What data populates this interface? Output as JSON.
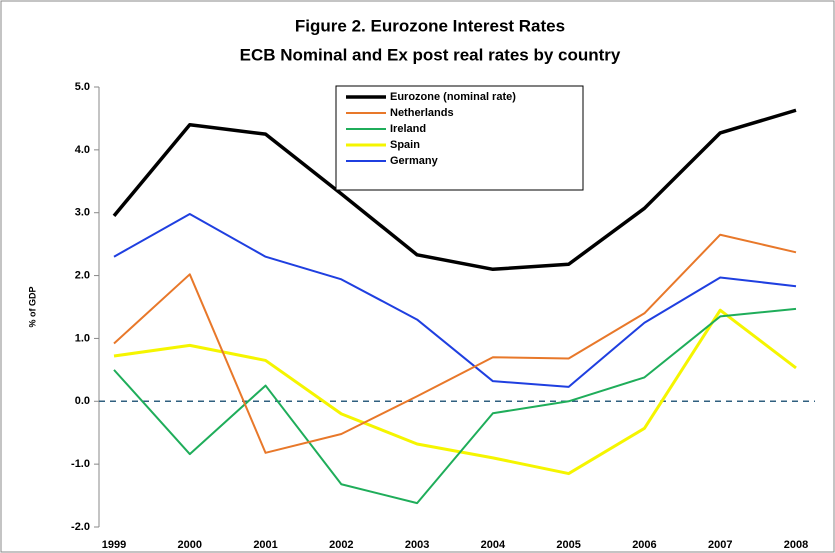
{
  "chart_data": {
    "type": "line",
    "title": "Figure 2. Eurozone Interest Rates",
    "subtitle": "ECB Nominal and Ex post real rates by country",
    "y_label": "% of GDP",
    "categories": [
      "1999",
      "2000",
      "2001",
      "2002",
      "2003",
      "2004",
      "2005",
      "2006",
      "2007",
      "2008"
    ],
    "series": [
      {
        "name": "Eurozone (nominal rate)",
        "color": "#000000",
        "width": 3.5,
        "values": [
          2.95,
          4.4,
          4.25,
          3.3,
          2.33,
          2.1,
          2.18,
          3.07,
          4.27,
          4.63
        ]
      },
      {
        "name": "Netherlands",
        "color": "#e8782a",
        "width": 2,
        "values": [
          0.92,
          2.02,
          -0.82,
          -0.52,
          0.08,
          0.7,
          0.68,
          1.4,
          2.65,
          2.37
        ]
      },
      {
        "name": "Ireland",
        "color": "#1fad5a",
        "width": 2,
        "values": [
          0.5,
          -0.84,
          0.25,
          -1.32,
          -1.62,
          -0.19,
          0.0,
          0.38,
          1.35,
          1.47
        ]
      },
      {
        "name": "Spain",
        "color": "#f5f500",
        "width": 3,
        "values": [
          0.72,
          0.89,
          0.65,
          -0.2,
          -0.68,
          -0.9,
          -1.15,
          -0.43,
          1.45,
          0.53
        ]
      },
      {
        "name": "Germany",
        "color": "#1f3fe0",
        "width": 2,
        "values": [
          2.3,
          2.98,
          2.3,
          1.94,
          1.3,
          0.32,
          0.23,
          1.25,
          1.97,
          1.83
        ]
      }
    ],
    "ylim": [
      -2,
      5
    ],
    "yticks": [
      {
        "value": -2,
        "label": "-2.0"
      },
      {
        "value": -1,
        "label": "-1.0"
      },
      {
        "value": 0,
        "label": "0.0"
      },
      {
        "value": 1,
        "label": "1.0"
      },
      {
        "value": 2,
        "label": "2.0"
      },
      {
        "value": 3,
        "label": "3.0"
      },
      {
        "value": 4,
        "label": "4.0"
      },
      {
        "value": 5,
        "label": "5.0"
      }
    ],
    "zero_line": true
  }
}
